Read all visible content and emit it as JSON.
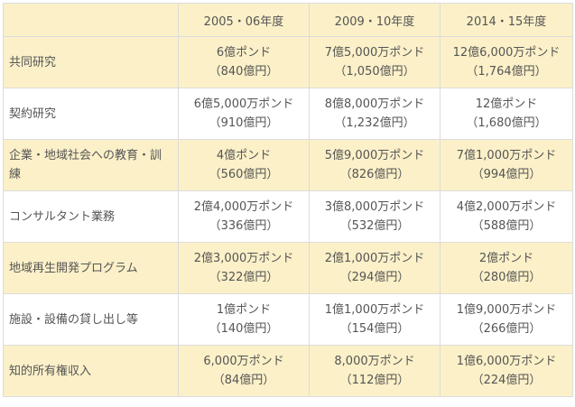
{
  "table": {
    "header": [
      "",
      "2005・06年度",
      "2009・10年度",
      "2014・15年度"
    ],
    "rows": [
      {
        "label": "共同研究",
        "cells": [
          {
            "amount": "6億ポンド",
            "yen": "（840億円）"
          },
          {
            "amount": "7億5,000万ポンド",
            "yen": "（1,050億円）"
          },
          {
            "amount": "12億6,000万ポンド",
            "yen": "（1,764億円）"
          }
        ]
      },
      {
        "label": "契約研究",
        "cells": [
          {
            "amount": "6億5,000万ポンド",
            "yen": "（910億円）"
          },
          {
            "amount": "8億8,000万ポンド",
            "yen": "（1,232億円）"
          },
          {
            "amount": "12億ポンド",
            "yen": "（1,680億円）"
          }
        ]
      },
      {
        "label": "企業・地域社会への教育・訓練",
        "cells": [
          {
            "amount": "4億ポンド",
            "yen": "（560億円）"
          },
          {
            "amount": "5億9,000万ポンド",
            "yen": "（826億円）"
          },
          {
            "amount": "7億1,000万ポンド",
            "yen": "（994億円）"
          }
        ]
      },
      {
        "label": "コンサルタント業務",
        "cells": [
          {
            "amount": "2億4,000万ポンド",
            "yen": "（336億円）"
          },
          {
            "amount": "3億8,000万ポンド",
            "yen": "（532億円）"
          },
          {
            "amount": "4億2,000万ポンド",
            "yen": "（588億円）"
          }
        ]
      },
      {
        "label": "地域再生開発プログラム",
        "cells": [
          {
            "amount": "2億3,000万ポンド",
            "yen": "（322億円）"
          },
          {
            "amount": "2億1,000万ポンド",
            "yen": "（294億円）"
          },
          {
            "amount": "2億ポンド",
            "yen": "（280億円）"
          }
        ]
      },
      {
        "label": "施設・設備の貸し出し等",
        "cells": [
          {
            "amount": "1億ポンド",
            "yen": "（140億円）"
          },
          {
            "amount": "1億1,000万ポンド",
            "yen": "（154億円）"
          },
          {
            "amount": "1億9,000万ポンド",
            "yen": "（266億円）"
          }
        ]
      },
      {
        "label": "知的所有権収入",
        "cells": [
          {
            "amount": "6,000万ポンド",
            "yen": "（84億円）"
          },
          {
            "amount": "8,000万ポンド",
            "yen": "（112億円）"
          },
          {
            "amount": "1億6,000万ポンド",
            "yen": "（224億円）"
          }
        ]
      }
    ]
  },
  "colors": {
    "shaded_row": "#fbf0c8",
    "border": "#dcdcdc",
    "text": "#555555"
  }
}
